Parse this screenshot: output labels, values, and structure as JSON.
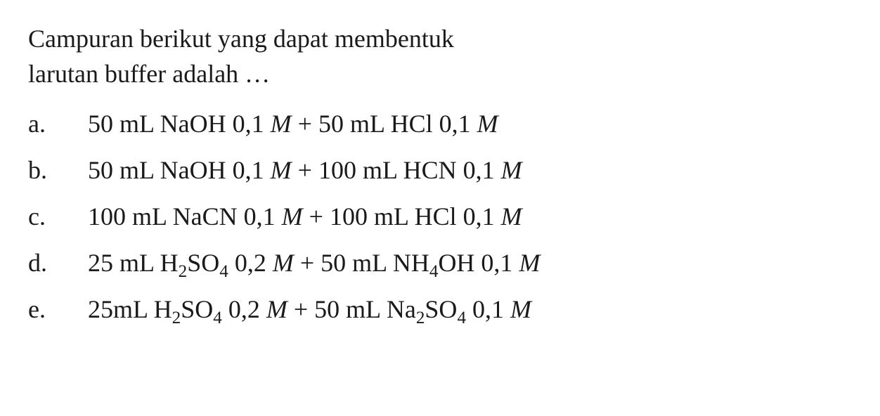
{
  "question": {
    "line1": "Campuran berikut yang dapat membentuk",
    "line2": "larutan buffer adalah …"
  },
  "options": [
    {
      "label": "a.",
      "text_parts": [
        {
          "t": "50 mL NaOH 0,1 ",
          "sub": ""
        },
        {
          "t": "M",
          "italic": true
        },
        {
          "t": " + 50 mL HCl 0,1 "
        },
        {
          "t": "M",
          "italic": true
        }
      ]
    },
    {
      "label": "b.",
      "text_parts": [
        {
          "t": "50 mL NaOH 0,1 "
        },
        {
          "t": "M",
          "italic": true
        },
        {
          "t": " + 100 mL HCN 0,1 "
        },
        {
          "t": "M",
          "italic": true
        }
      ]
    },
    {
      "label": "c.",
      "text_parts": [
        {
          "t": "100 mL NaCN 0,1 "
        },
        {
          "t": "M",
          "italic": true
        },
        {
          "t": " + 100 mL HCl 0,1 "
        },
        {
          "t": "M",
          "italic": true
        }
      ]
    },
    {
      "label": "d.",
      "text_parts": [
        {
          "t": "25 mL H"
        },
        {
          "t": "2",
          "sub": true
        },
        {
          "t": "SO"
        },
        {
          "t": "4",
          "sub": true
        },
        {
          "t": " 0,2 "
        },
        {
          "t": "M",
          "italic": true
        },
        {
          "t": " + 50 mL NH"
        },
        {
          "t": "4",
          "sub": true
        },
        {
          "t": "OH 0,1 "
        },
        {
          "t": "M",
          "italic": true
        }
      ]
    },
    {
      "label": "e.",
      "text_parts": [
        {
          "t": "25mL H"
        },
        {
          "t": "2",
          "sub": true
        },
        {
          "t": "SO"
        },
        {
          "t": "4",
          "sub": true
        },
        {
          "t": " 0,2 "
        },
        {
          "t": "M",
          "italic": true
        },
        {
          "t": " + 50 mL Na"
        },
        {
          "t": "2",
          "sub": true
        },
        {
          "t": "SO"
        },
        {
          "t": "4",
          "sub": true
        },
        {
          "t": " 0,1 "
        },
        {
          "t": "M",
          "italic": true
        }
      ]
    }
  ],
  "styling": {
    "background_color": "#ffffff",
    "text_color": "#1a1a1a",
    "font_family": "Georgia, Times New Roman, serif",
    "question_fontsize": 36,
    "option_fontsize": 36,
    "option_label_width": 85
  }
}
